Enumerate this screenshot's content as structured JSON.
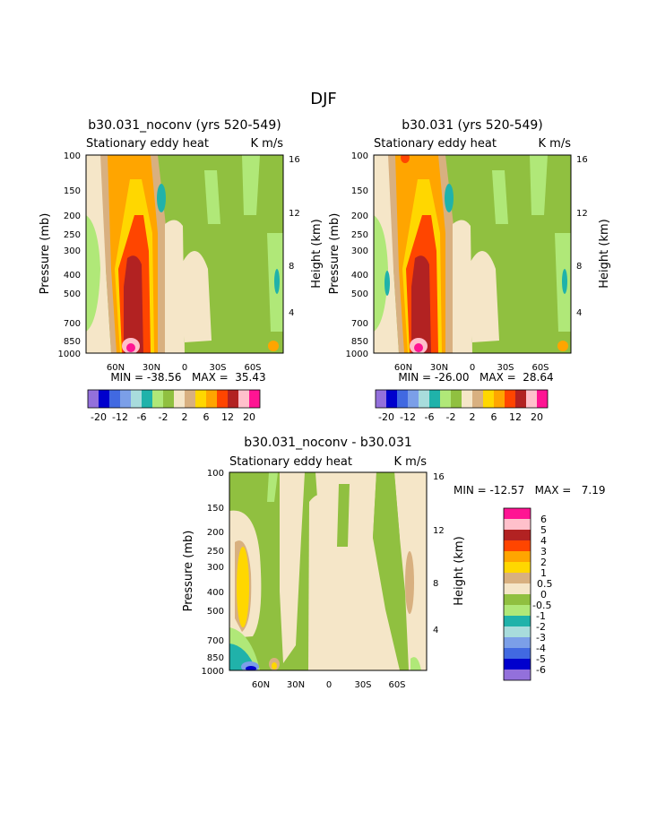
{
  "page_title": "DJF",
  "colors": {
    "c_m6": "#9370DB",
    "c_m5": "#0000CD",
    "c_m4": "#4169E1",
    "c_m3": "#7B9FE8",
    "c_m2": "#A8DCDC",
    "c_m1": "#20B2AA",
    "c_m05": "#B0E878",
    "c_0": "#90C040",
    "c_05": "#F5E6C8",
    "c_1": "#D8B080",
    "c_2": "#FFD700",
    "c_3": "#FFA500",
    "c_4": "#FF4500",
    "c_5": "#B22222",
    "c_6": "#FFC0CB",
    "c_7": "#FF1493"
  },
  "chart_data": [
    {
      "type": "heatmap",
      "title": "b30.031_noconv (yrs 520-549)",
      "subtitle_left": "Stationary eddy heat",
      "subtitle_right": "K m/s",
      "ylabel": "Pressure (mb)",
      "ylabel_right": "Height (km)",
      "xticks": [
        "60N",
        "30N",
        "0",
        "30S",
        "60S"
      ],
      "yticks": [
        "100",
        "150",
        "200",
        "250",
        "300",
        "400",
        "500",
        "700",
        "850",
        "1000"
      ],
      "yticks_right": [
        "16",
        "12",
        "8",
        "4"
      ],
      "stats": "MIN = -38.56   MAX =  35.43",
      "colorbar_labels": [
        "-20",
        "-12",
        "-6",
        "-2",
        "2",
        "6",
        "12",
        "20"
      ]
    },
    {
      "type": "heatmap",
      "title": "b30.031 (yrs 520-549)",
      "subtitle_left": "Stationary eddy heat",
      "subtitle_right": "K m/s",
      "ylabel": "Pressure (mb)",
      "ylabel_right": "Height (km)",
      "xticks": [
        "60N",
        "30N",
        "0",
        "30S",
        "60S"
      ],
      "yticks": [
        "100",
        "150",
        "200",
        "250",
        "300",
        "400",
        "500",
        "700",
        "850",
        "1000"
      ],
      "yticks_right": [
        "16",
        "12",
        "8",
        "4"
      ],
      "stats": "MIN = -26.00   MAX =  28.64",
      "colorbar_labels": [
        "-20",
        "-12",
        "-6",
        "-2",
        "2",
        "6",
        "12",
        "20"
      ]
    },
    {
      "type": "heatmap",
      "title": "b30.031_noconv - b30.031",
      "subtitle_left": "Stationary eddy heat",
      "subtitle_right": "K m/s",
      "ylabel": "Pressure (mb)",
      "ylabel_right": "Height (km)",
      "xticks": [
        "60N",
        "30N",
        "0",
        "30S",
        "60S"
      ],
      "yticks": [
        "100",
        "150",
        "200",
        "250",
        "300",
        "400",
        "500",
        "700",
        "850",
        "1000"
      ],
      "yticks_right": [
        "16",
        "12",
        "8",
        "4"
      ],
      "stats": "MIN = -12.57   MAX =   7.19",
      "legend_labels": [
        "6",
        "5",
        "4",
        "3",
        "2",
        "1",
        "0.5",
        "0",
        "-0.5",
        "-1",
        "-2",
        "-3",
        "-4",
        "-5",
        "-6"
      ]
    }
  ]
}
